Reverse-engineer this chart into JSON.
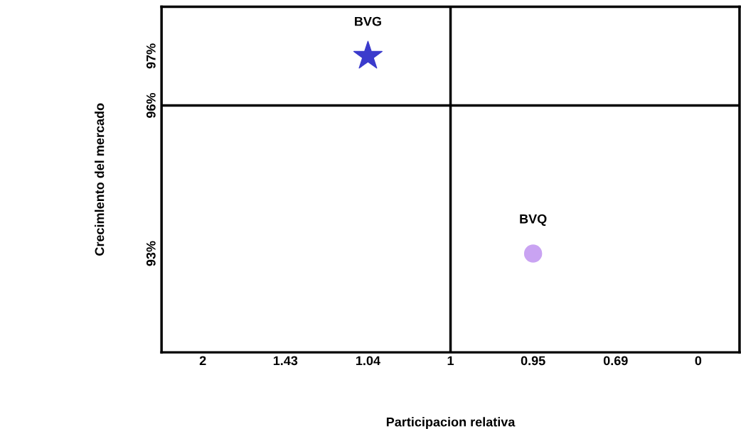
{
  "chart_data": {
    "type": "scatter",
    "xlabel": "Participacion relativa",
    "ylabel": "Crecimlento del mercado",
    "categories": [
      "2",
      "1.43",
      "1.04",
      "1",
      "0.95",
      "0.69",
      "0"
    ],
    "series": [
      {
        "name": "BVG",
        "color": "#3b3bcc",
        "x": [
          "1.04"
        ],
        "values": [
          97
        ],
        "marker": "star"
      },
      {
        "name": "BVQ",
        "color": "#c9a3f2",
        "x": [
          "0.95"
        ],
        "values": [
          93
        ],
        "marker": "circle"
      }
    ],
    "ylim": [
      91,
      98
    ],
    "yticks": [
      {
        "value": 97,
        "label": "97%"
      },
      {
        "value": 96,
        "label": "96%"
      },
      {
        "value": 93,
        "label": "93%"
      }
    ],
    "ref_lines": [
      {
        "axis": "x",
        "value": "1",
        "color": "#000000"
      },
      {
        "axis": "y",
        "value": 96,
        "color": "#000000"
      }
    ],
    "grid": false,
    "legend": false
  }
}
